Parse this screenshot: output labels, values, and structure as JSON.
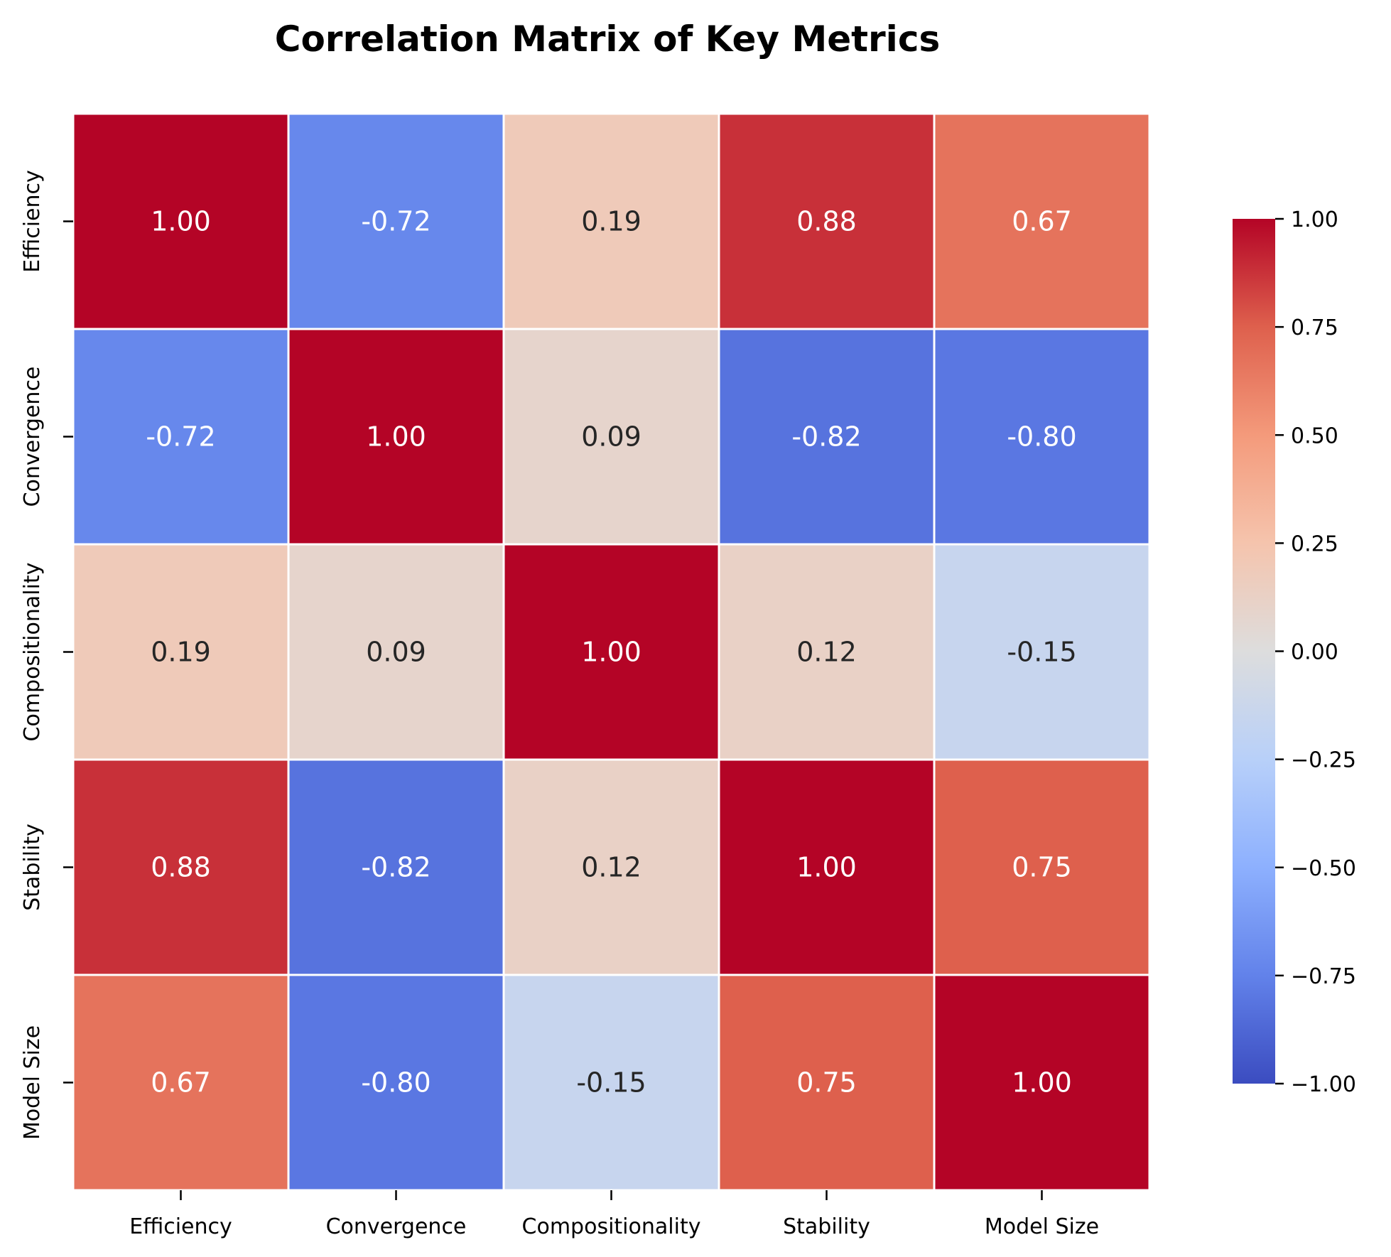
{
  "chart_data": {
    "type": "heatmap",
    "title": "Correlation Matrix of Key Metrics",
    "row_labels": [
      "Efficiency",
      "Convergence",
      "Compositionality",
      "Stability",
      "Model Size"
    ],
    "col_labels": [
      "Efficiency",
      "Convergence",
      "Compositionality",
      "Stability",
      "Model Size"
    ],
    "values": [
      [
        1.0,
        -0.72,
        0.19,
        0.88,
        0.67
      ],
      [
        -0.72,
        1.0,
        0.09,
        -0.82,
        -0.8
      ],
      [
        0.19,
        0.09,
        1.0,
        0.12,
        -0.15
      ],
      [
        0.88,
        -0.82,
        0.12,
        1.0,
        0.75
      ],
      [
        0.67,
        -0.8,
        -0.15,
        0.75,
        1.0
      ]
    ],
    "annotation_format": "0.00",
    "colormap": "coolwarm",
    "vmin": -1.0,
    "vmax": 1.0,
    "colorbar": {
      "ticks": [
        1.0,
        0.75,
        0.5,
        0.25,
        0.0,
        -0.25,
        -0.5,
        -0.75,
        -1.0
      ],
      "tick_labels": [
        "1.00",
        "0.75",
        "0.50",
        "0.25",
        "0.00",
        "−0.25",
        "−0.50",
        "−0.75",
        "−1.00"
      ],
      "placement": "right"
    }
  }
}
